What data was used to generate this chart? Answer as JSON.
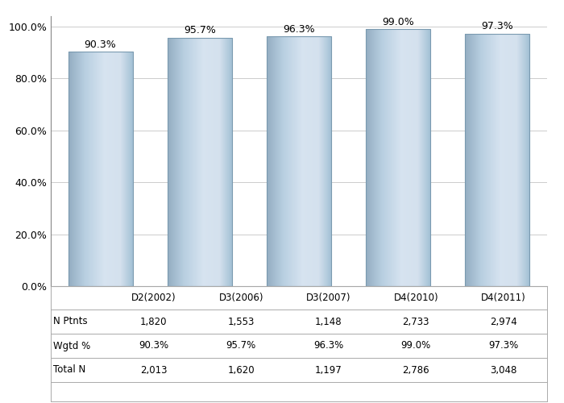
{
  "categories": [
    "D2(2002)",
    "D3(2006)",
    "D3(2007)",
    "D4(2010)",
    "D4(2011)"
  ],
  "values": [
    90.3,
    95.7,
    96.3,
    99.0,
    97.3
  ],
  "label_values": [
    "90.3%",
    "95.7%",
    "96.3%",
    "99.0%",
    "97.3%"
  ],
  "n_ptnts": [
    "1,820",
    "1,553",
    "1,148",
    "2,733",
    "2,974"
  ],
  "wgtd_pct": [
    "90.3%",
    "95.7%",
    "96.3%",
    "99.0%",
    "97.3%"
  ],
  "total_n": [
    "2,013",
    "1,620",
    "1,197",
    "2,786",
    "3,048"
  ],
  "row_labels": [
    "N Ptnts",
    "Wgtd %",
    "Total N"
  ],
  "ylim": [
    0,
    100
  ],
  "yticks": [
    0,
    20,
    40,
    60,
    80,
    100
  ],
  "ytick_labels": [
    "0.0%",
    "20.0%",
    "40.0%",
    "60.0%",
    "80.0%",
    "100.0%"
  ],
  "background_color": "#ffffff",
  "grid_color": "#cccccc",
  "bar_edge_color": "#7a9ab0",
  "font_size_ticks": 9,
  "font_size_labels": 9,
  "font_size_table": 8.5
}
